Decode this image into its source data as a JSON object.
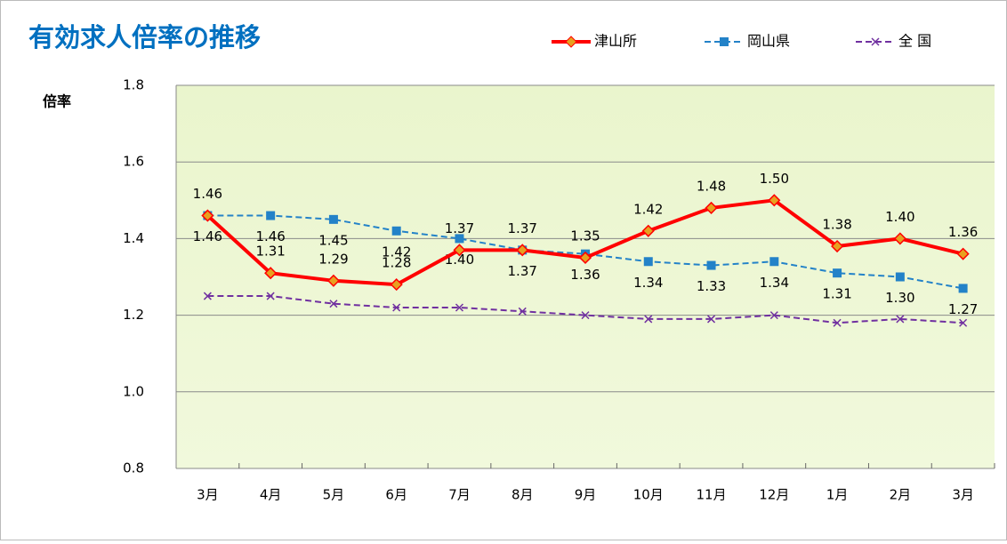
{
  "chart_data": {
    "type": "line",
    "title": "有効求人倍率の推移",
    "y_label": "倍率",
    "categories": [
      "3月",
      "4月",
      "5月",
      "6月",
      "7月",
      "8月",
      "9月",
      "10月",
      "11月",
      "12月",
      "1月",
      "2月",
      "3月"
    ],
    "series": [
      {
        "name": "津山所",
        "color": "#ff0000",
        "marker": "diamond",
        "dash": false,
        "values": [
          1.46,
          1.31,
          1.29,
          1.28,
          1.37,
          1.37,
          1.35,
          1.42,
          1.48,
          1.5,
          1.38,
          1.4,
          1.36
        ],
        "value_labels": [
          "1.46",
          "1.31",
          "1.29",
          "1.28",
          "1.37",
          "1.37",
          "1.35",
          "1.42",
          "1.48",
          "1.50",
          "1.38",
          "1.40",
          "1.36"
        ]
      },
      {
        "name": "岡山県",
        "color": "#2382c8",
        "marker": "square",
        "dash": true,
        "values": [
          1.46,
          1.46,
          1.45,
          1.42,
          1.4,
          1.37,
          1.36,
          1.34,
          1.33,
          1.34,
          1.31,
          1.3,
          1.27
        ],
        "value_labels": [
          "1.46",
          "1.46",
          "1.45",
          "1.42",
          "1.40",
          "1.37",
          "1.36",
          "1.34",
          "1.33",
          "1.34",
          "1.31",
          "1.30",
          "1.27"
        ]
      },
      {
        "name": "全 国",
        "color": "#7030a0",
        "marker": "x",
        "dash": true,
        "values": [
          1.25,
          1.25,
          1.23,
          1.22,
          1.22,
          1.21,
          1.2,
          1.19,
          1.19,
          1.2,
          1.18,
          1.19,
          1.18
        ]
      }
    ],
    "ylim": [
      0.8,
      1.8
    ],
    "yticks": [
      0.8,
      {
        "value": 1,
        "label": "1.0"
      },
      1.2,
      1.4,
      1.6,
      1.8
    ],
    "grid": true
  }
}
